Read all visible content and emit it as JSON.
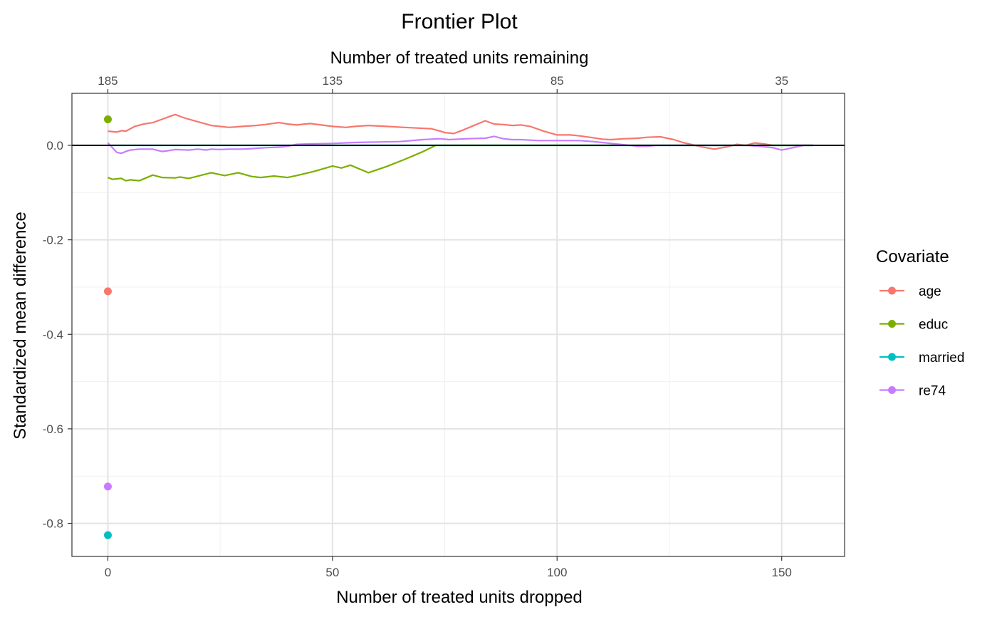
{
  "chart_data": {
    "type": "line",
    "title": "Frontier Plot",
    "xlabel": "Number of treated units dropped",
    "x2label": "Number of treated units remaining",
    "ylabel": "Standardized mean difference",
    "xlim": [
      -8,
      164
    ],
    "ylim": [
      -0.87,
      0.11
    ],
    "xticks": [
      0,
      50,
      100,
      150
    ],
    "xtick_labels": [
      "0",
      "50",
      "100",
      "150"
    ],
    "x2ticks": [
      0,
      50,
      100,
      150
    ],
    "x2tick_labels": [
      "185",
      "135",
      "85",
      "35"
    ],
    "yticks": [
      0.0,
      -0.2,
      -0.4,
      -0.6,
      -0.8
    ],
    "ytick_labels": [
      "0.0",
      "-0.2",
      "-0.4",
      "-0.6",
      "-0.8"
    ],
    "grid": true,
    "hline": 0,
    "legend": {
      "title": "Covariate",
      "position": "right"
    },
    "series": [
      {
        "name": "age",
        "color": "#F8766D",
        "start_point": [
          0,
          -0.309
        ],
        "x": [
          0,
          2,
          3,
          4,
          6,
          8,
          10,
          12,
          14,
          15,
          17,
          20,
          23,
          27,
          30,
          33,
          35,
          38,
          40,
          42,
          45,
          50,
          53,
          55,
          58,
          62,
          66,
          72,
          74,
          75,
          77,
          79,
          84,
          86,
          88,
          90,
          92,
          94,
          97,
          100,
          103,
          105,
          108,
          110,
          112,
          115,
          118,
          120,
          123,
          126,
          128,
          132,
          135,
          138,
          140,
          142,
          144,
          146,
          148,
          150,
          152,
          155,
          157
        ],
        "y": [
          0.03,
          0.028,
          0.031,
          0.03,
          0.04,
          0.045,
          0.048,
          0.055,
          0.062,
          0.065,
          0.058,
          0.05,
          0.042,
          0.038,
          0.04,
          0.042,
          0.044,
          0.048,
          0.045,
          0.043,
          0.046,
          0.04,
          0.038,
          0.04,
          0.042,
          0.04,
          0.038,
          0.035,
          0.03,
          0.027,
          0.025,
          0.032,
          0.052,
          0.045,
          0.044,
          0.042,
          0.043,
          0.04,
          0.03,
          0.022,
          0.022,
          0.02,
          0.016,
          0.013,
          0.012,
          0.014,
          0.015,
          0.017,
          0.018,
          0.012,
          0.006,
          -0.003,
          -0.008,
          -0.003,
          0.002,
          0.0,
          0.005,
          0.003,
          0.0,
          0.0,
          0.0,
          0.0,
          0.0
        ]
      },
      {
        "name": "educ",
        "color": "#7CAE00",
        "start_point": [
          0,
          0.055
        ],
        "x": [
          0,
          1,
          3,
          4,
          5,
          7,
          10,
          12,
          15,
          16,
          18,
          23,
          26,
          29,
          32,
          34,
          37,
          40,
          42,
          46,
          50,
          52,
          54,
          58,
          62,
          66,
          70,
          73,
          80,
          90,
          100,
          110,
          120,
          130,
          140,
          150,
          157
        ],
        "y": [
          -0.068,
          -0.072,
          -0.07,
          -0.075,
          -0.073,
          -0.075,
          -0.063,
          -0.068,
          -0.069,
          -0.067,
          -0.07,
          -0.058,
          -0.064,
          -0.058,
          -0.066,
          -0.068,
          -0.065,
          -0.068,
          -0.064,
          -0.055,
          -0.044,
          -0.048,
          -0.042,
          -0.058,
          -0.045,
          -0.03,
          -0.014,
          0.0,
          0.0,
          0.0,
          0.0,
          0.0,
          0.0,
          0.0,
          0.0,
          0.0,
          0.0
        ]
      },
      {
        "name": "married",
        "color": "#00BFC4",
        "start_point": [
          0,
          -0.825
        ],
        "x": [
          0,
          157
        ],
        "y": [
          0.0,
          0.0
        ]
      },
      {
        "name": "re74",
        "color": "#C77CFF",
        "start_point": [
          0,
          -0.722
        ],
        "x": [
          0,
          1,
          2,
          3,
          4,
          5,
          7,
          10,
          12,
          13,
          15,
          18,
          20,
          22,
          23,
          25,
          27,
          30,
          32,
          35,
          38,
          40,
          42,
          45,
          50,
          55,
          60,
          65,
          70,
          72,
          74,
          76,
          78,
          80,
          84,
          86,
          88,
          90,
          92,
          94,
          96,
          98,
          100,
          105,
          108,
          110,
          112,
          114,
          116,
          118,
          120,
          122,
          125,
          128,
          130,
          133,
          136,
          138,
          140,
          142,
          145,
          148,
          150,
          152,
          155,
          157
        ],
        "y": [
          0.005,
          -0.005,
          -0.015,
          -0.017,
          -0.013,
          -0.01,
          -0.008,
          -0.008,
          -0.013,
          -0.012,
          -0.009,
          -0.01,
          -0.008,
          -0.01,
          -0.008,
          -0.009,
          -0.008,
          -0.008,
          -0.007,
          -0.005,
          -0.004,
          -0.002,
          0.002,
          0.003,
          0.004,
          0.006,
          0.007,
          0.008,
          0.012,
          0.013,
          0.014,
          0.012,
          0.013,
          0.014,
          0.015,
          0.019,
          0.014,
          0.012,
          0.012,
          0.011,
          0.01,
          0.01,
          0.01,
          0.01,
          0.008,
          0.006,
          0.004,
          0.002,
          0.0,
          -0.002,
          -0.002,
          0.0,
          0.0,
          0.0,
          0.0,
          0.0,
          0.0,
          0.0,
          0.0,
          0.0,
          -0.002,
          -0.005,
          -0.01,
          -0.006,
          0.0,
          0.0
        ]
      }
    ]
  }
}
